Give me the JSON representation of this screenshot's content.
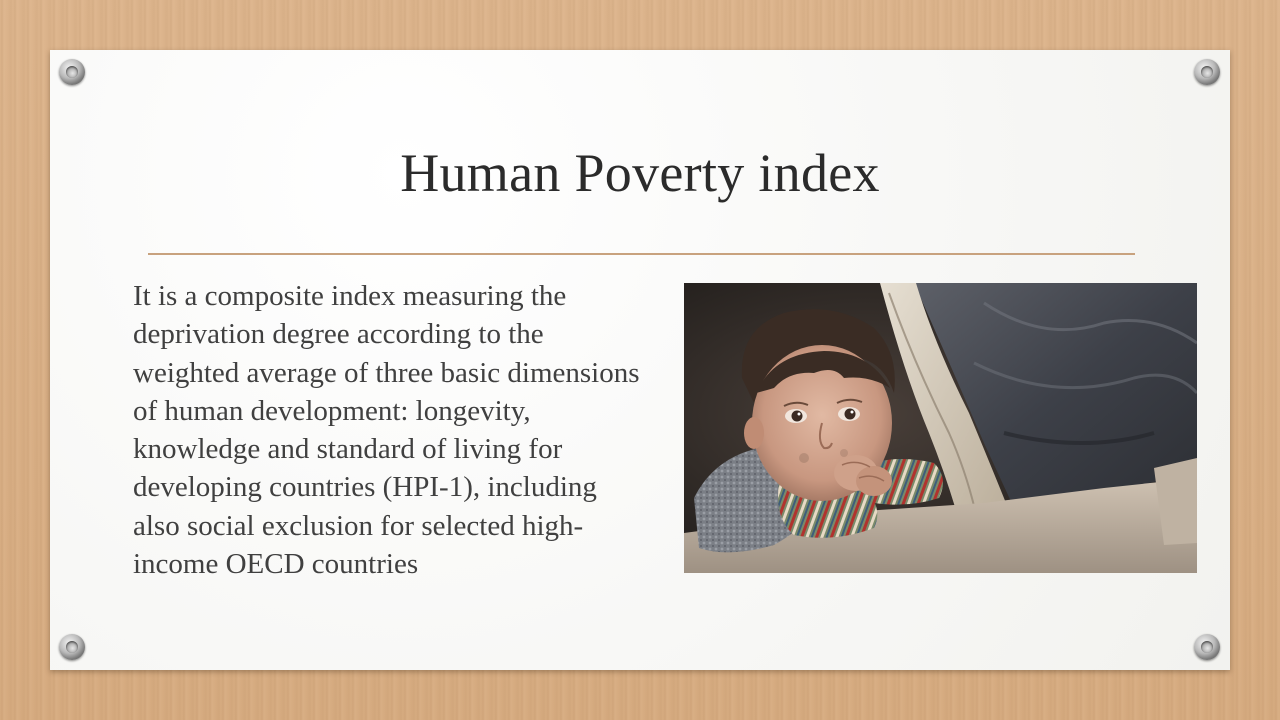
{
  "slide": {
    "title": "Human Poverty index",
    "body": "It is a composite index measuring the deprivation degree according to the weighted average of three basic dimensions of human development: longevity, knowledge and standard of living for developing countries (HPI-1), including also social exclusion for selected high-income OECD countries"
  },
  "image": {
    "subject": "photo of a young child resting chin on clasped hands beside a worn blanket"
  },
  "colors": {
    "background": "#d9b088",
    "card": "#fbfbfa",
    "title_text": "#2b2b2b",
    "body_text": "#404040",
    "rule": "#c8a27e"
  },
  "icons": [
    "grommet-icon",
    "grommet-icon",
    "grommet-icon",
    "grommet-icon"
  ]
}
